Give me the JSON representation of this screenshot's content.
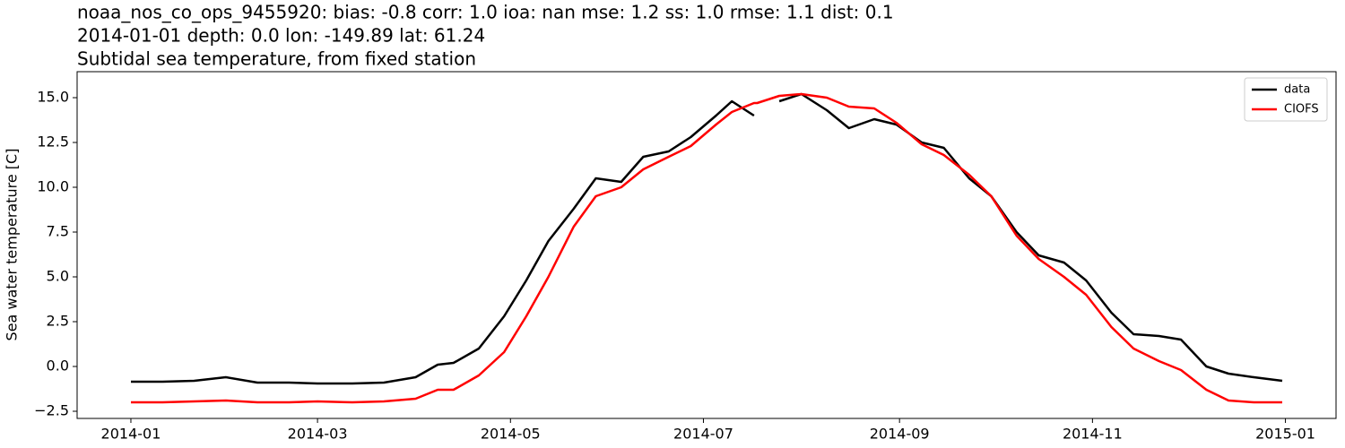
{
  "chart_data": {
    "type": "line",
    "title": "noaa_nos_co_ops_9455920: bias: -0.8  corr: 1.0  ioa: nan  mse: 1.2  ss: 1.0  rmse: 1.1  dist: 0.1",
    "subtitle": "2014-01-01 depth: 0.0 lon: -149.89 lat: 61.24",
    "subtitle2": "Subtidal sea temperature, from fixed station",
    "y_label": "Sea water temperature [C]",
    "x": [
      "2014-01-01",
      "2014-01-11",
      "2014-01-21",
      "2014-01-31",
      "2014-02-10",
      "2014-02-20",
      "2014-03-01",
      "2014-03-12",
      "2014-03-22",
      "2014-04-01",
      "2014-04-08",
      "2014-04-13",
      "2014-04-21",
      "2014-04-29",
      "2014-05-06",
      "2014-05-13",
      "2014-05-21",
      "2014-05-28",
      "2014-06-05",
      "2014-06-12",
      "2014-06-20",
      "2014-06-27",
      "2014-07-05",
      "2014-07-10",
      "2014-07-17",
      "2014-07-18",
      "2014-07-25",
      "2014-08-01",
      "2014-08-09",
      "2014-08-16",
      "2014-08-24",
      "2014-08-31",
      "2014-09-08",
      "2014-09-15",
      "2014-09-23",
      "2014-09-30",
      "2014-10-08",
      "2014-10-15",
      "2014-10-23",
      "2014-10-30",
      "2014-11-07",
      "2014-11-14",
      "2014-11-22",
      "2014-11-29",
      "2014-12-07",
      "2014-12-14",
      "2014-12-22",
      "2014-12-31"
    ],
    "series": [
      {
        "name": "data",
        "color": "#000000",
        "values": [
          -0.85,
          -0.85,
          -0.8,
          -0.6,
          -0.9,
          -0.9,
          -0.95,
          -0.95,
          -0.9,
          -0.6,
          0.1,
          0.2,
          1.0,
          2.8,
          4.8,
          7.0,
          8.8,
          10.5,
          10.3,
          11.7,
          12.0,
          12.8,
          14.0,
          14.8,
          14.0,
          null,
          14.8,
          15.2,
          14.3,
          13.3,
          13.8,
          13.5,
          12.5,
          12.2,
          10.5,
          9.5,
          7.5,
          6.2,
          5.8,
          4.8,
          3.0,
          1.8,
          1.7,
          1.5,
          0.0,
          -0.4,
          -0.6,
          -0.8
        ]
      },
      {
        "name": "CIOFS",
        "color": "#ff0000",
        "values": [
          -2.0,
          -2.0,
          -1.95,
          -1.9,
          -2.0,
          -2.0,
          -1.95,
          -2.0,
          -1.95,
          -1.8,
          -1.3,
          -1.3,
          -0.5,
          0.8,
          2.8,
          5.0,
          7.8,
          9.5,
          10.0,
          11.0,
          11.7,
          12.3,
          13.5,
          14.2,
          14.7,
          14.7,
          15.1,
          15.2,
          15.0,
          14.5,
          14.4,
          13.6,
          12.4,
          11.8,
          10.7,
          9.5,
          7.3,
          6.0,
          5.0,
          4.0,
          2.2,
          1.0,
          0.3,
          -0.2,
          -1.3,
          -1.9,
          -2.0,
          -2.0
        ]
      }
    ],
    "xlim": [
      "2013-12-15",
      "2015-01-17"
    ],
    "xticks": [
      {
        "value": "2014-01-01",
        "label": "2014-01"
      },
      {
        "value": "2014-03-01",
        "label": "2014-03"
      },
      {
        "value": "2014-05-01",
        "label": "2014-05"
      },
      {
        "value": "2014-07-01",
        "label": "2014-07"
      },
      {
        "value": "2014-09-01",
        "label": "2014-09"
      },
      {
        "value": "2014-11-01",
        "label": "2014-11"
      },
      {
        "value": "2015-01-01",
        "label": "2015-01"
      }
    ],
    "ylim": [
      -2.9,
      16.45
    ],
    "yticks": [
      {
        "value": -2.5,
        "label": "−2.5"
      },
      {
        "value": 0,
        "label": "0.0"
      },
      {
        "value": 2.5,
        "label": "2.5"
      },
      {
        "value": 5,
        "label": "5.0"
      },
      {
        "value": 7.5,
        "label": "7.5"
      },
      {
        "value": 10,
        "label": "10.0"
      },
      {
        "value": 12.5,
        "label": "12.5"
      },
      {
        "value": 15,
        "label": "15.0"
      }
    ],
    "legend": "upper right"
  }
}
